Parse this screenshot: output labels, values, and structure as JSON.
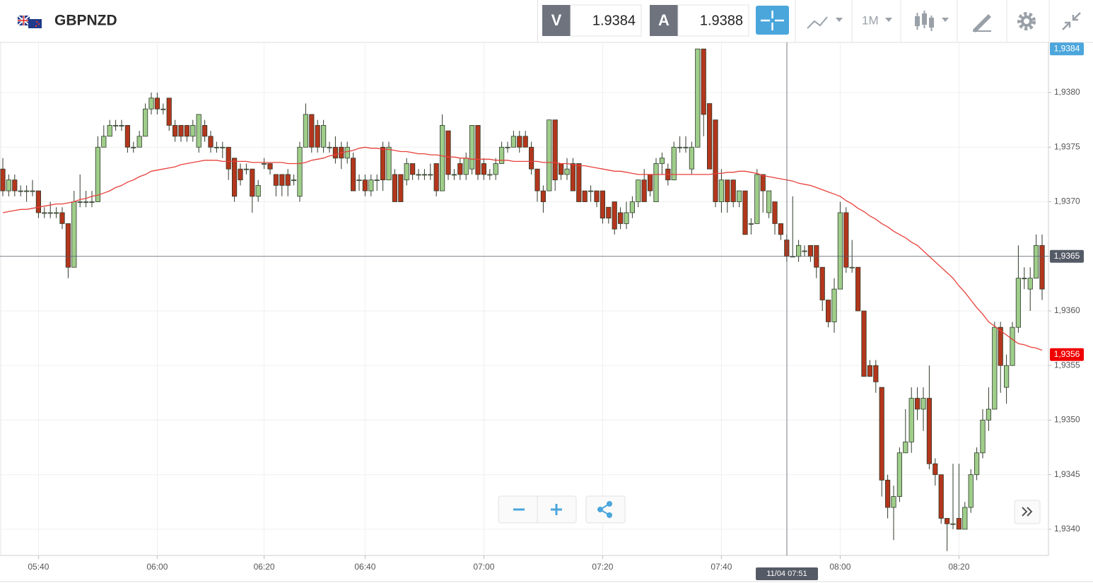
{
  "toolbar": {
    "symbol": "GBPNZD",
    "bid_label": "V",
    "bid": "1.9384",
    "ask_label": "A",
    "ask": "1.9388",
    "timeframe": "1M"
  },
  "chart_data": {
    "type": "candlestick",
    "categories": [
      null,
      null,
      null,
      null,
      null,
      null,
      "05:40",
      null,
      null,
      null,
      null,
      null,
      null,
      null,
      null,
      null,
      null,
      null,
      null,
      null,
      null,
      null,
      null,
      null,
      null,
      null,
      "06:00",
      null,
      null,
      null,
      null,
      null,
      null,
      null,
      null,
      null,
      null,
      null,
      null,
      null,
      null,
      null,
      null,
      null,
      "06:20",
      null,
      null,
      null,
      null,
      null,
      null,
      null,
      null,
      null,
      null,
      null,
      null,
      null,
      null,
      null,
      null,
      "06:40",
      null,
      null,
      null,
      null,
      null,
      null,
      null,
      null,
      null,
      null,
      null,
      null,
      null,
      null,
      null,
      null,
      null,
      null,
      null,
      "07:00",
      null,
      null,
      null,
      null,
      null,
      null,
      null,
      null,
      null,
      null,
      null,
      null,
      null,
      null,
      null,
      null,
      null,
      null,
      null,
      "07:20",
      null,
      null,
      null,
      null,
      null,
      null,
      null,
      null,
      null,
      null,
      null,
      null,
      null,
      null,
      null,
      null,
      null,
      null,
      null,
      "07:40",
      null,
      null,
      null,
      null,
      null,
      null,
      null,
      null,
      null,
      null,
      null,
      null,
      null,
      null,
      null,
      null,
      null,
      null,
      null,
      "08:00",
      null,
      null,
      null,
      null,
      null,
      null,
      null,
      null,
      null,
      null,
      null,
      null,
      null,
      null,
      null,
      null,
      null,
      null,
      null,
      "08:20",
      null,
      null,
      null,
      null,
      null,
      null,
      null,
      null,
      null,
      null,
      null,
      null,
      null,
      null
    ],
    "open": [
      1.9373,
      1.9371,
      1.9372,
      1.9371,
      1.9371,
      1.9371,
      1.9371,
      1.9369,
      1.9369,
      1.9369,
      1.9369,
      1.9368,
      1.9364,
      1.937,
      1.937,
      1.937,
      1.937,
      1.9375,
      1.9376,
      1.9377,
      1.9377,
      1.9377,
      1.9375,
      1.9375,
      1.9376,
      1.93785,
      1.93795,
      1.93785,
      1.93795,
      1.9377,
      1.9377,
      1.9377,
      1.9376,
      1.9375,
      1.9377,
      1.9376,
      1.9375,
      1.9375,
      1.9375,
      1.9374,
      1.9373,
      1.9373,
      1.9373,
      1.93705,
      1.93735,
      1.93735,
      1.93725,
      1.93725,
      1.93725,
      1.9372,
      1.93705,
      1.9375,
      1.9378,
      1.9377,
      1.9375,
      1.9375,
      1.9375,
      1.9375,
      1.9374,
      1.9374,
      1.9372,
      1.9372,
      1.9371,
      1.9372,
      1.9375,
      1.9372,
      1.93725,
      1.93725,
      1.9372,
      1.93735,
      1.93725,
      1.93725,
      1.93725,
      1.93735,
      1.9371,
      1.93765,
      1.93725,
      1.93735,
      1.93725,
      1.9373,
      1.9377,
      1.93735,
      1.93725,
      1.93725,
      1.93735,
      1.9375,
      1.9375,
      1.9376,
      1.9376,
      1.9375,
      1.9373,
      1.9371,
      1.9371,
      1.93775,
      1.93735,
      1.93725,
      1.93735,
      1.93735,
      1.9371,
      1.9371,
      1.9371,
      1.9371,
      1.93695,
      1.937,
      1.9369,
      1.9368,
      1.9369,
      1.937,
      1.9372,
      1.93725,
      1.937,
      1.93735,
      1.9373,
      1.9372,
      1.9375,
      1.9375,
      1.9373,
      1.9375,
      1.9384,
      1.9379,
      1.93775,
      1.937,
      1.9372,
      1.9372,
      1.937,
      1.9371,
      1.9368,
      1.9368,
      1.93725,
      1.9369,
      1.937,
      1.9368,
      1.93665,
      1.9365,
      1.9365,
      1.93655,
      1.9366,
      1.9366,
      1.9364,
      1.9361,
      1.9359,
      1.9362,
      1.9369,
      1.9364,
      1.9364,
      1.936,
      1.9355,
      1.9355,
      1.9353,
      1.93445,
      1.9342,
      1.9343,
      1.9347,
      1.9348,
      1.9352,
      1.9351,
      1.9352,
      1.9346,
      1.9345,
      1.9341,
      1.93405,
      1.9341,
      1.934,
      1.9342,
      1.9345,
      1.9347,
      1.935,
      1.9351,
      1.93585,
      1.9353,
      1.9355,
      1.93585,
      1.9363,
      1.9362,
      1.9363,
      1.9366
    ],
    "high": [
      1.9374,
      1.93725,
      1.93725,
      1.93715,
      1.93715,
      1.9372,
      1.9371,
      1.93695,
      1.937,
      1.93695,
      1.93695,
      1.9368,
      1.9371,
      1.93725,
      1.9371,
      1.9371,
      1.9376,
      1.9377,
      1.93775,
      1.93775,
      1.93775,
      1.9377,
      1.93755,
      1.93765,
      1.9379,
      1.938,
      1.938,
      1.9379,
      1.93795,
      1.93775,
      1.9377,
      1.9377,
      1.93775,
      1.9378,
      1.93775,
      1.93765,
      1.93755,
      1.93755,
      1.9375,
      1.9374,
      1.93735,
      1.93735,
      1.9373,
      1.9372,
      1.9374,
      1.93735,
      1.93725,
      1.93725,
      1.9373,
      1.93725,
      1.93755,
      1.9379,
      1.9378,
      1.93775,
      1.93775,
      1.93755,
      1.9376,
      1.93755,
      1.93755,
      1.93745,
      1.93725,
      1.93725,
      1.93725,
      1.93725,
      1.93755,
      1.93755,
      1.9373,
      1.93725,
      1.9374,
      1.93735,
      1.9373,
      1.9373,
      1.93735,
      1.93735,
      1.9378,
      1.93765,
      1.9373,
      1.9374,
      1.93745,
      1.9377,
      1.9377,
      1.9374,
      1.9373,
      1.9374,
      1.93755,
      1.93755,
      1.93765,
      1.93765,
      1.93765,
      1.93755,
      1.9373,
      1.93715,
      1.93775,
      1.93775,
      1.93735,
      1.9374,
      1.9374,
      1.93735,
      1.9371,
      1.93715,
      1.9371,
      1.9371,
      1.93695,
      1.937,
      1.93695,
      1.937,
      1.93705,
      1.9372,
      1.9373,
      1.93725,
      1.9374,
      1.93745,
      1.93735,
      1.93755,
      1.9376,
      1.9376,
      1.93755,
      1.9384,
      1.9384,
      1.9379,
      1.93775,
      1.9373,
      1.9372,
      1.9372,
      1.9371,
      1.9371,
      1.93685,
      1.9373,
      1.93725,
      1.9371,
      1.937,
      1.9368,
      1.9367,
      1.93705,
      1.93665,
      1.9366,
      1.9366,
      1.9366,
      1.9364,
      1.9361,
      1.9363,
      1.937,
      1.93695,
      1.93665,
      1.9364,
      1.936,
      1.93555,
      1.93555,
      1.9353,
      1.9345,
      1.9344,
      1.93475,
      1.9351,
      1.9353,
      1.9353,
      1.9353,
      1.9355,
      1.93465,
      1.9345,
      1.9341,
      1.9346,
      1.9346,
      1.93425,
      1.93455,
      1.93475,
      1.9351,
      1.9353,
      1.9359,
      1.9359,
      1.9356,
      1.9359,
      1.9366,
      1.9364,
      1.9364,
      1.9367,
      1.9367
    ],
    "low": [
      1.93705,
      1.93705,
      1.93705,
      1.93705,
      1.937,
      1.93705,
      1.93685,
      1.93685,
      1.93685,
      1.93685,
      1.93675,
      1.9363,
      1.9364,
      1.93695,
      1.93695,
      1.93695,
      1.937,
      1.9375,
      1.9376,
      1.93765,
      1.93765,
      1.93745,
      1.93745,
      1.9375,
      1.9376,
      1.9378,
      1.9378,
      1.9378,
      1.93765,
      1.93755,
      1.93755,
      1.93755,
      1.93755,
      1.93745,
      1.93755,
      1.93745,
      1.93745,
      1.9374,
      1.9372,
      1.937,
      1.93715,
      1.93725,
      1.9369,
      1.937,
      1.9373,
      1.93725,
      1.93705,
      1.93705,
      1.93705,
      1.93715,
      1.937,
      1.9375,
      1.93745,
      1.93745,
      1.93745,
      1.93745,
      1.93735,
      1.9373,
      1.93735,
      1.9371,
      1.9371,
      1.93705,
      1.93705,
      1.9371,
      1.9371,
      1.9372,
      1.937,
      1.937,
      1.93715,
      1.9372,
      1.9372,
      1.9372,
      1.9372,
      1.93705,
      1.9371,
      1.9372,
      1.9372,
      1.9372,
      1.9372,
      1.93725,
      1.9372,
      1.9372,
      1.9372,
      1.9372,
      1.93735,
      1.93745,
      1.9375,
      1.93745,
      1.9375,
      1.93725,
      1.937,
      1.9369,
      1.9371,
      1.9371,
      1.9372,
      1.9372,
      1.9371,
      1.937,
      1.937,
      1.937,
      1.93695,
      1.9368,
      1.9368,
      1.9367,
      1.93675,
      1.93675,
      1.93685,
      1.93695,
      1.937,
      1.93705,
      1.937,
      1.93725,
      1.93715,
      1.9372,
      1.93745,
      1.93745,
      1.93725,
      1.9375,
      1.9376,
      1.9373,
      1.93695,
      1.9369,
      1.9369,
      1.93695,
      1.93695,
      1.9367,
      1.9367,
      1.9368,
      1.9369,
      1.93685,
      1.9367,
      1.93665,
      1.93645,
      1.9365,
      1.93645,
      1.9365,
      1.93645,
      1.9363,
      1.936,
      1.93585,
      1.9358,
      1.9362,
      1.93635,
      1.93635,
      1.936,
      1.9354,
      1.9354,
      1.93525,
      1.9343,
      1.9341,
      1.9339,
      1.93425,
      1.9347,
      1.9347,
      1.935,
      1.9349,
      1.93455,
      1.9344,
      1.93405,
      1.9338,
      1.934,
      1.934,
      1.934,
      1.93415,
      1.93445,
      1.93465,
      1.9349,
      1.9351,
      1.93525,
      1.93515,
      1.9355,
      1.9358,
      1.9362,
      1.936,
      1.9363,
      1.9361
    ],
    "close": [
      1.9371,
      1.9372,
      1.9371,
      1.9371,
      1.9371,
      1.9371,
      1.9369,
      1.9369,
      1.9369,
      1.9369,
      1.9368,
      1.9364,
      1.937,
      1.937,
      1.937,
      1.937,
      1.9375,
      1.9376,
      1.9377,
      1.9377,
      1.9377,
      1.9375,
      1.9375,
      1.9376,
      1.93785,
      1.93795,
      1.93785,
      1.93785,
      1.9377,
      1.9376,
      1.9376,
      1.9376,
      1.9377,
      1.9378,
      1.9376,
      1.9375,
      1.9375,
      1.9375,
      1.9373,
      1.93705,
      1.9372,
      1.9373,
      1.93705,
      1.93715,
      1.93735,
      1.9373,
      1.93715,
      1.93715,
      1.93715,
      1.9372,
      1.9375,
      1.9378,
      1.9375,
      1.9375,
      1.9377,
      1.9375,
      1.9374,
      1.9374,
      1.9375,
      1.9371,
      1.9372,
      1.9371,
      1.9372,
      1.9372,
      1.9372,
      1.9375,
      1.937,
      1.937,
      1.93735,
      1.93725,
      1.93725,
      1.93725,
      1.93725,
      1.9371,
      1.9377,
      1.93725,
      1.93725,
      1.93725,
      1.9374,
      1.9377,
      1.93725,
      1.93725,
      1.93725,
      1.93735,
      1.9375,
      1.9375,
      1.9376,
      1.9375,
      1.9375,
      1.9373,
      1.9371,
      1.937,
      1.93775,
      1.9372,
      1.93725,
      1.9373,
      1.9371,
      1.937,
      1.937,
      1.9371,
      1.937,
      1.93685,
      1.93685,
      1.93675,
      1.9368,
      1.9369,
      1.937,
      1.9372,
      1.937,
      1.9371,
      1.93735,
      1.9374,
      1.9372,
      1.9375,
      1.9375,
      1.9375,
      1.9375,
      1.9384,
      1.9378,
      1.9373,
      1.937,
      1.9372,
      1.937,
      1.937,
      1.9371,
      1.9367,
      1.9368,
      1.93725,
      1.9371,
      1.9371,
      1.9368,
      1.9367,
      1.9365,
      1.9365,
      1.9366,
      1.93655,
      1.9365,
      1.9364,
      1.9361,
      1.9359,
      1.9362,
      1.9369,
      1.9364,
      1.9364,
      1.936,
      1.9354,
      1.9354,
      1.93535,
      1.93445,
      1.9342,
      1.9343,
      1.9347,
      1.9348,
      1.9352,
      1.9351,
      1.9352,
      1.9346,
      1.9345,
      1.9341,
      1.93405,
      1.93405,
      1.934,
      1.9342,
      1.9345,
      1.9347,
      1.935,
      1.9351,
      1.93585,
      1.9355,
      1.9355,
      1.93585,
      1.9363,
      1.9363,
      1.9363,
      1.9366,
      1.9362
    ],
    "colors": {
      "up": "#9fcd8a",
      "down": "#b3361c",
      "outline": "#2f3a2a"
    },
    "ma": {
      "color": "#e8403a",
      "values": [
        1.9369,
        1.93691,
        1.93692,
        1.93693,
        1.93693,
        1.93694,
        1.93695,
        1.93696,
        1.93697,
        1.93698,
        1.93698,
        1.93699,
        1.937,
        1.93702,
        1.93703,
        1.93705,
        1.93706,
        1.93708,
        1.9371,
        1.93713,
        1.93715,
        1.93718,
        1.9372,
        1.93723,
        1.93725,
        1.93728,
        1.93729,
        1.9373,
        1.93731,
        1.93732,
        1.93734,
        1.93735,
        1.93736,
        1.93737,
        1.93738,
        1.93738,
        1.93738,
        1.93737,
        1.93737,
        1.93737,
        1.93737,
        1.93737,
        1.93736,
        1.93736,
        1.93736,
        1.93736,
        1.93736,
        1.93736,
        1.93735,
        1.93735,
        1.93735,
        1.93736,
        1.93738,
        1.93739,
        1.9374,
        1.93742,
        1.93743,
        1.93745,
        1.93746,
        1.93747,
        1.93749,
        1.9375,
        1.93749,
        1.93749,
        1.93748,
        1.93748,
        1.93747,
        1.93746,
        1.93746,
        1.93745,
        1.93744,
        1.93744,
        1.93743,
        1.93743,
        1.93742,
        1.93741,
        1.93741,
        1.9374,
        1.9374,
        1.93739,
        1.93739,
        1.93739,
        1.93739,
        1.93738,
        1.93738,
        1.93738,
        1.93737,
        1.93737,
        1.93737,
        1.93737,
        1.93737,
        1.93736,
        1.93736,
        1.93736,
        1.93735,
        1.93735,
        1.93734,
        1.93733,
        1.93733,
        1.93732,
        1.93731,
        1.9373,
        1.93729,
        1.93728,
        1.93728,
        1.93727,
        1.93726,
        1.93725,
        1.93725,
        1.93725,
        1.93725,
        1.93725,
        1.93725,
        1.93725,
        1.93725,
        1.93725,
        1.93725,
        1.93725,
        1.93725,
        1.93725,
        1.93726,
        1.93726,
        1.93727,
        1.93727,
        1.93728,
        1.93728,
        1.93727,
        1.93726,
        1.93724,
        1.93723,
        1.93722,
        1.93721,
        1.9372,
        1.93719,
        1.93717,
        1.93716,
        1.93715,
        1.93713,
        1.93711,
        1.93709,
        1.93707,
        1.93705,
        1.93701,
        1.93698,
        1.93694,
        1.93691,
        1.93687,
        1.93684,
        1.9368,
        1.93677,
        1.93673,
        1.9367,
        1.93667,
        1.93663,
        1.9366,
        1.93655,
        1.9365,
        1.93645,
        1.9364,
        1.93635,
        1.9363,
        1.93623,
        1.93617,
        1.9361,
        1.93603,
        1.93597,
        1.9359,
        1.93586,
        1.93582,
        1.93578,
        1.93574,
        1.9357,
        1.93569,
        1.93567,
        1.93566,
        1.93564
      ]
    },
    "ylim": [
      1.93376,
      1.93846
    ],
    "yticks": [
      {
        "value": 1.934,
        "label": "1,9340"
      },
      {
        "value": 1.9345,
        "label": "1,9345"
      },
      {
        "value": 1.935,
        "label": "1,9350"
      },
      {
        "value": 1.9355,
        "label": "1,9355"
      },
      {
        "value": 1.936,
        "label": "1,9360"
      },
      {
        "value": 1.9365,
        "label": "1,9365"
      },
      {
        "value": 1.937,
        "label": "1,9370"
      },
      {
        "value": 1.9375,
        "label": "1,9375"
      },
      {
        "value": 1.938,
        "label": "1,9380"
      }
    ],
    "grid": true,
    "price_tags": [
      {
        "value": 1.9384,
        "label": "1,9384",
        "color": "#4ba6dc"
      },
      {
        "value": 1.9356,
        "label": "1,9356",
        "color": "#f00000"
      }
    ],
    "crosshair": {
      "time_label": "11/04 07:51",
      "price": {
        "value": 1.9365,
        "label": "1,9365"
      },
      "color": "#555b66"
    }
  }
}
